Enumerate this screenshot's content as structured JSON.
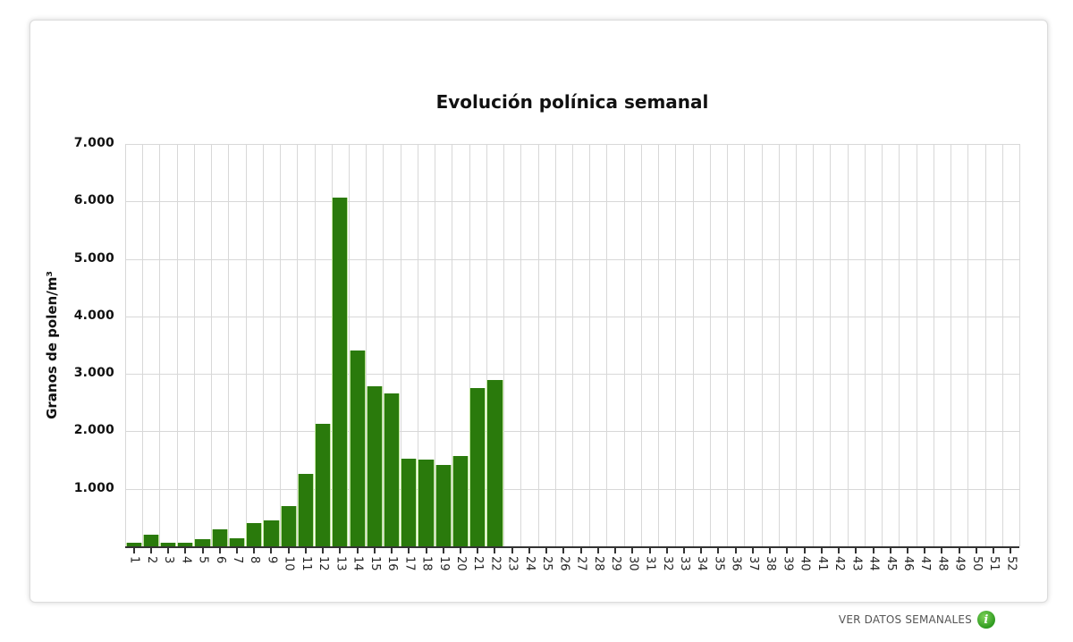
{
  "chart_data": {
    "type": "bar",
    "title": "Evolución polínica semanal",
    "xlabel": "",
    "ylabel": "Granos de polen/m³",
    "ylim": [
      0,
      7000
    ],
    "yticks": [
      1000,
      2000,
      3000,
      4000,
      5000,
      6000,
      7000
    ],
    "ytick_labels": [
      "1.000",
      "2.000",
      "3.000",
      "4.000",
      "5.000",
      "6.000",
      "7.000"
    ],
    "grid": true,
    "legend": null,
    "bar_color": "#2a7a0c",
    "categories": [
      "1",
      "2",
      "3",
      "4",
      "5",
      "6",
      "7",
      "8",
      "9",
      "10",
      "11",
      "12",
      "13",
      "14",
      "15",
      "16",
      "17",
      "18",
      "19",
      "20",
      "21",
      "22",
      "23",
      "24",
      "25",
      "26",
      "27",
      "28",
      "29",
      "30",
      "31",
      "32",
      "33",
      "34",
      "35",
      "36",
      "37",
      "38",
      "39",
      "40",
      "41",
      "42",
      "43",
      "44",
      "45",
      "46",
      "47",
      "48",
      "49",
      "50",
      "51",
      "52"
    ],
    "values": [
      60,
      195,
      60,
      60,
      130,
      295,
      135,
      410,
      450,
      705,
      1264,
      2132,
      6062,
      3408,
      2788,
      2654,
      1523,
      1502,
      1410,
      1574,
      2754,
      2892,
      null,
      null,
      null,
      null,
      null,
      null,
      null,
      null,
      null,
      null,
      null,
      null,
      null,
      null,
      null,
      null,
      null,
      null,
      null,
      null,
      null,
      null,
      null,
      null,
      null,
      null,
      null,
      null,
      null,
      null
    ]
  },
  "footer": {
    "link_label": "VER DATOS SEMANALES",
    "icon": "info-icon",
    "icon_glyph": "i"
  }
}
